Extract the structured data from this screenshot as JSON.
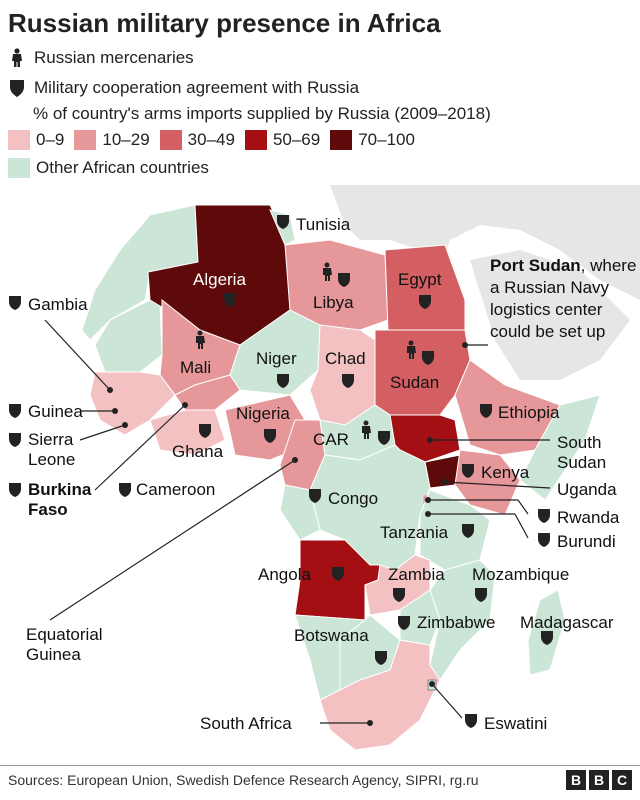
{
  "title": "Russian military presence in Africa",
  "legend": {
    "mercenaries": "Russian mercenaries",
    "agreement": "Military cooperation agreement with Russia",
    "arms_title": "% of country's arms imports supplied by Russia (2009–2018)",
    "bins": [
      {
        "label": "0–9",
        "color": "#f4c1c3"
      },
      {
        "label": "10–29",
        "color": "#e5979a"
      },
      {
        "label": "30–49",
        "color": "#d45f62"
      },
      {
        "label": "50–69",
        "color": "#a40f14"
      },
      {
        "label": "70–100",
        "color": "#5e0a0a"
      }
    ],
    "other": {
      "label": "Other African countries",
      "color": "#cbe5d6"
    }
  },
  "map": {
    "background_land": "#e6e6e6",
    "labels": {
      "tunisia": "Tunisia",
      "algeria": "Algeria",
      "libya": "Libya",
      "egypt": "Egypt",
      "mali": "Mali",
      "niger": "Niger",
      "chad": "Chad",
      "sudan": "Sudan",
      "gambia": "Gambia",
      "guinea": "Guinea",
      "sierra_leone": "Sierra\nLeone",
      "burkina_faso": "Burkina\nFaso",
      "ghana": "Ghana",
      "nigeria": "Nigeria",
      "cameroon": "Cameroon",
      "car": "CAR",
      "ethiopia": "Ethiopia",
      "south_sudan": "South\nSudan",
      "kenya": "Kenya",
      "uganda": "Uganda",
      "congo": "Congo",
      "rwanda": "Rwanda",
      "burundi": "Burundi",
      "tanzania": "Tanzania",
      "equatorial_guinea": "Equatorial\nGuinea",
      "angola": "Angola",
      "zambia": "Zambia",
      "mozambique": "Mozambique",
      "zimbabwe": "Zimbabwe",
      "madagascar": "Madagascar",
      "botswana": "Botswana",
      "south_africa": "South Africa",
      "eswatini": "Eswatini"
    },
    "port_sudan": {
      "title": "Port Sudan",
      "text": ", where\na Russian Navy\nlogistics center\ncould be set up"
    }
  },
  "source": "Sources: European Union, Swedish Defence Research Agency, SIPRI, rg.ru",
  "logo": [
    "B",
    "B",
    "C"
  ]
}
